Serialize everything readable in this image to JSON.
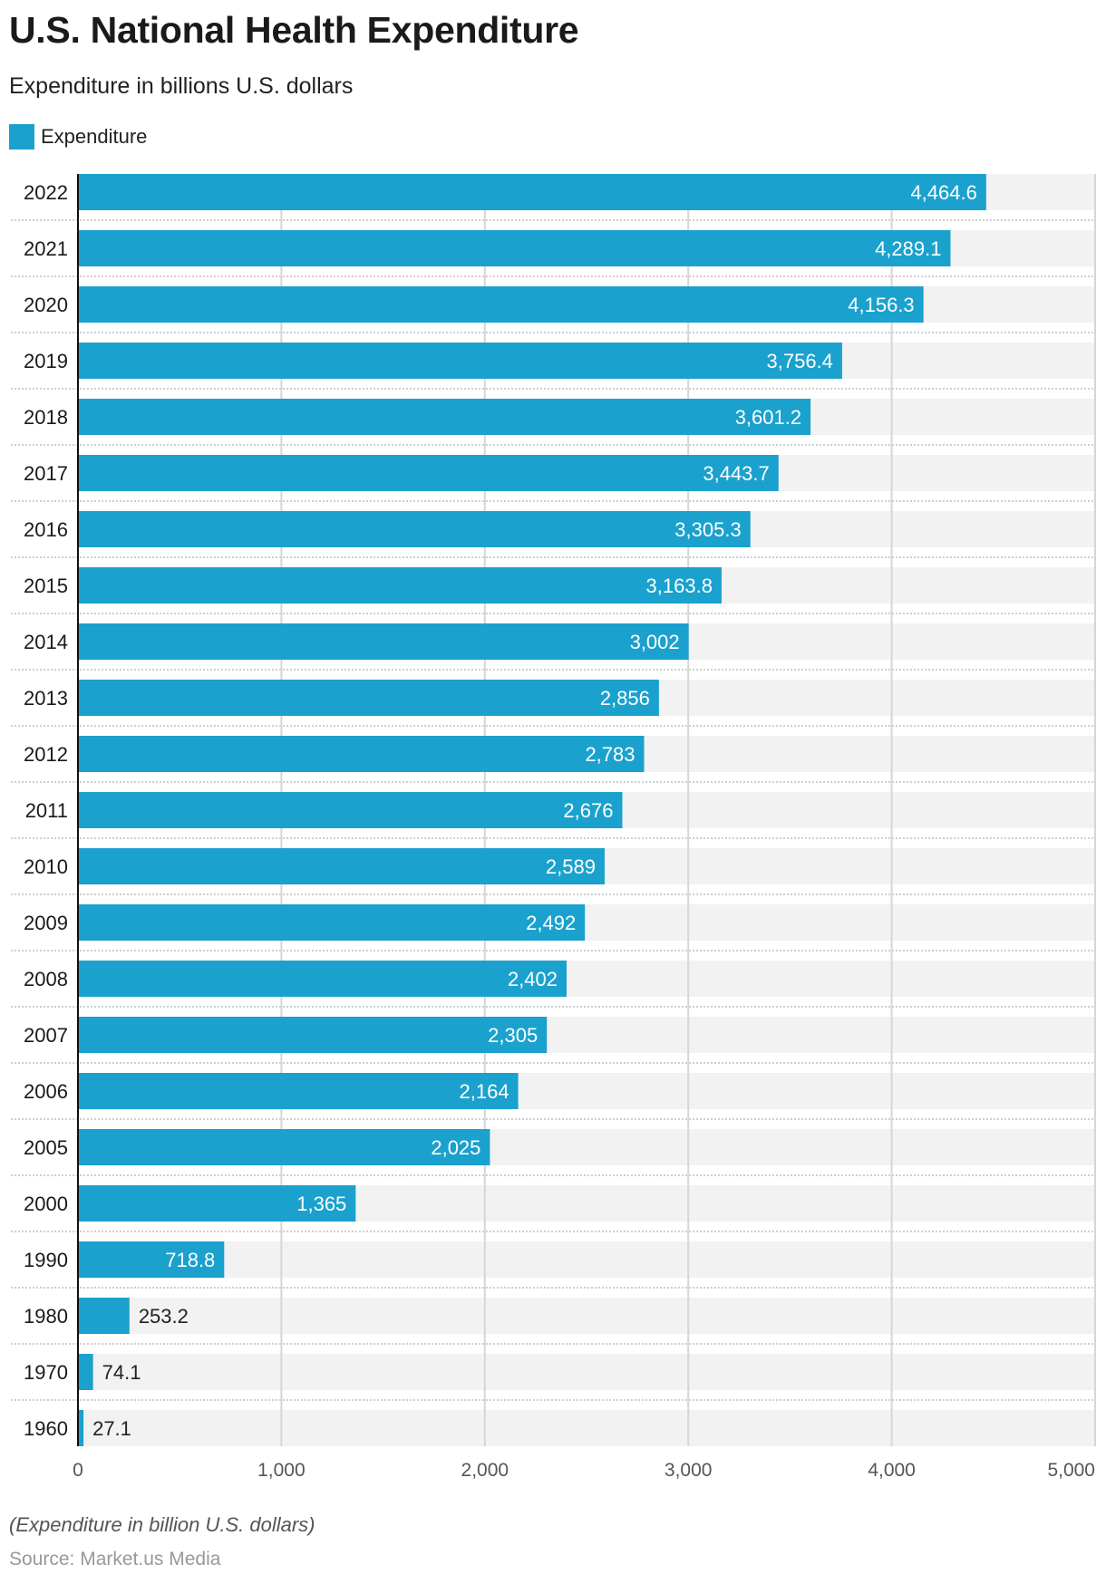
{
  "header": {
    "title": "U.S. National Health Expenditure",
    "subtitle": "Expenditure in billions U.S. dollars"
  },
  "footer": {
    "note": "(Expenditure in billion U.S. dollars)",
    "source": "Source: Market.us Media"
  },
  "colors": {
    "bar": "#1ba1cd",
    "band": "#f2f2f2",
    "grid": "#d6d6d6",
    "axis": "#111111",
    "label_inside": "#ffffff",
    "label_outside": "#222222",
    "tick": "#555555"
  },
  "chart_data": {
    "type": "bar",
    "orientation": "horizontal",
    "title": "U.S. National Health Expenditure",
    "subtitle": "Expenditure in billions U.S. dollars",
    "xlabel": "",
    "ylabel": "",
    "legend": {
      "position": "top-left",
      "entries": [
        "Expenditure"
      ]
    },
    "grid": true,
    "xlim": [
      0,
      5000
    ],
    "x_ticks": [
      0,
      1000,
      2000,
      3000,
      4000,
      5000
    ],
    "x_tick_labels": [
      "0",
      "1,000",
      "2,000",
      "3,000",
      "4,000",
      "5,000"
    ],
    "categories": [
      "2022",
      "2021",
      "2020",
      "2019",
      "2018",
      "2017",
      "2016",
      "2015",
      "2014",
      "2013",
      "2012",
      "2011",
      "2010",
      "2009",
      "2008",
      "2007",
      "2006",
      "2005",
      "2000",
      "1990",
      "1980",
      "1970",
      "1960"
    ],
    "series": [
      {
        "name": "Expenditure",
        "values": [
          4464.6,
          4289.1,
          4156.3,
          3756.4,
          3601.2,
          3443.7,
          3305.3,
          3163.8,
          3002,
          2856,
          2783,
          2676,
          2589,
          2492,
          2402,
          2305,
          2164,
          2025,
          1365,
          718.8,
          253.2,
          74.1,
          27.1
        ],
        "labels": [
          "4,464.6",
          "4,289.1",
          "4,156.3",
          "3,756.4",
          "3,601.2",
          "3,443.7",
          "3,305.3",
          "3,163.8",
          "3,002",
          "2,856",
          "2,783",
          "2,676",
          "2,589",
          "2,492",
          "2,402",
          "2,305",
          "2,164",
          "2,025",
          "1,365",
          "718.8",
          "253.2",
          "74.1",
          "27.1"
        ]
      }
    ]
  }
}
